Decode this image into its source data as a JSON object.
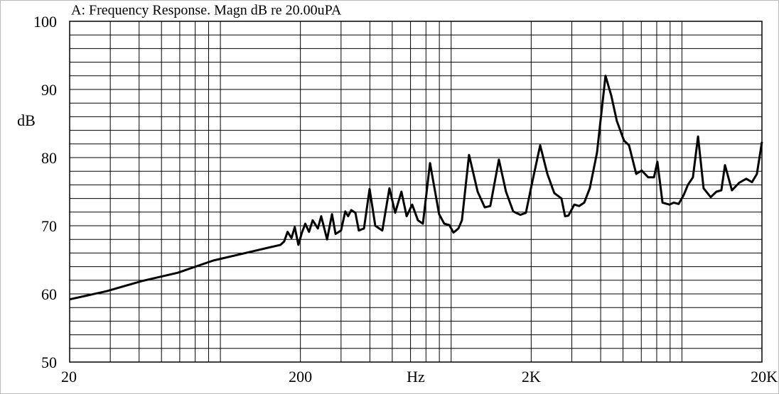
{
  "chart_data": {
    "type": "line",
    "title": "A: Frequency Response. Magn dB re 20.00uPA",
    "x_label": "Hz",
    "y_label": "dB",
    "xscale": "log",
    "grid": true,
    "xlim": [
      20,
      20000
    ],
    "ylim": [
      50,
      100
    ],
    "xticks": [
      20,
      200,
      {
        "value": 2000,
        "label": "2K"
      },
      {
        "value": 20000,
        "label": "20K"
      }
    ],
    "yticks": [
      50,
      60,
      70,
      80,
      90,
      100
    ],
    "xminor": [
      30,
      40,
      50,
      60,
      70,
      80,
      90,
      300,
      400,
      500,
      600,
      700,
      800,
      900,
      3000,
      4000,
      5000,
      6000,
      7000,
      8000,
      9000
    ],
    "yminor": [
      52,
      54,
      56,
      58,
      62,
      64,
      66,
      68,
      72,
      74,
      76,
      78,
      82,
      84,
      86,
      88,
      92,
      94,
      96,
      98
    ],
    "series": [
      {
        "color": "#000000",
        "x": [
          20,
          28.9,
          41.2,
          58.8,
          83.8,
          119,
          164,
          170,
          176,
          183,
          189,
          196,
          203,
          210,
          218,
          226,
          238,
          246,
          261,
          274,
          284,
          300,
          313,
          322,
          332,
          346,
          358,
          377,
          399,
          422,
          453,
          486,
          515,
          548,
          577,
          610,
          646,
          679,
          729,
          798,
          840,
          883,
          921,
          968,
          1002,
          1076,
          1172,
          1258,
          1330,
          1449,
          1556,
          1671,
          1795,
          1897,
          2009,
          2188,
          2350,
          2518,
          2704,
          2805,
          2904,
          3076,
          3228,
          3396,
          3590,
          3856,
          4198,
          4446,
          4700,
          5048,
          5310,
          5702,
          6026,
          6428,
          6808,
          7048,
          7414,
          7944,
          8300,
          8710,
          9160,
          9550,
          10046,
          10568,
          11170,
          11996,
          12706,
          13336,
          13836,
          14826,
          15924,
          17100,
          18114,
          19012,
          20000
        ],
        "values": [
          59.2,
          60.4,
          61.9,
          63.1,
          64.9,
          66.1,
          67.2,
          67.7,
          69.1,
          68.2,
          69.8,
          67.2,
          69.0,
          70.3,
          69.1,
          70.8,
          69.6,
          71.4,
          68.0,
          71.7,
          68.8,
          69.3,
          72.1,
          71.4,
          72.3,
          71.9,
          69.3,
          69.6,
          75.4,
          70.0,
          69.3,
          75.5,
          71.9,
          75.0,
          71.4,
          73.1,
          70.8,
          70.3,
          79.2,
          71.7,
          70.3,
          70.1,
          69.0,
          69.6,
          70.8,
          80.4,
          75.0,
          72.7,
          72.9,
          79.7,
          75.0,
          72.1,
          71.6,
          71.9,
          76.0,
          81.8,
          77.6,
          74.8,
          74.0,
          71.4,
          71.5,
          73.1,
          72.9,
          73.4,
          75.5,
          80.7,
          92.0,
          89.1,
          85.4,
          82.5,
          81.8,
          77.6,
          78.1,
          77.1,
          77.1,
          79.4,
          73.4,
          73.1,
          73.4,
          73.2,
          74.5,
          76.0,
          77.1,
          83.1,
          75.5,
          74.2,
          75.0,
          75.2,
          78.9,
          75.2,
          76.3,
          76.9,
          76.4,
          77.6,
          82.3
        ]
      }
    ]
  }
}
